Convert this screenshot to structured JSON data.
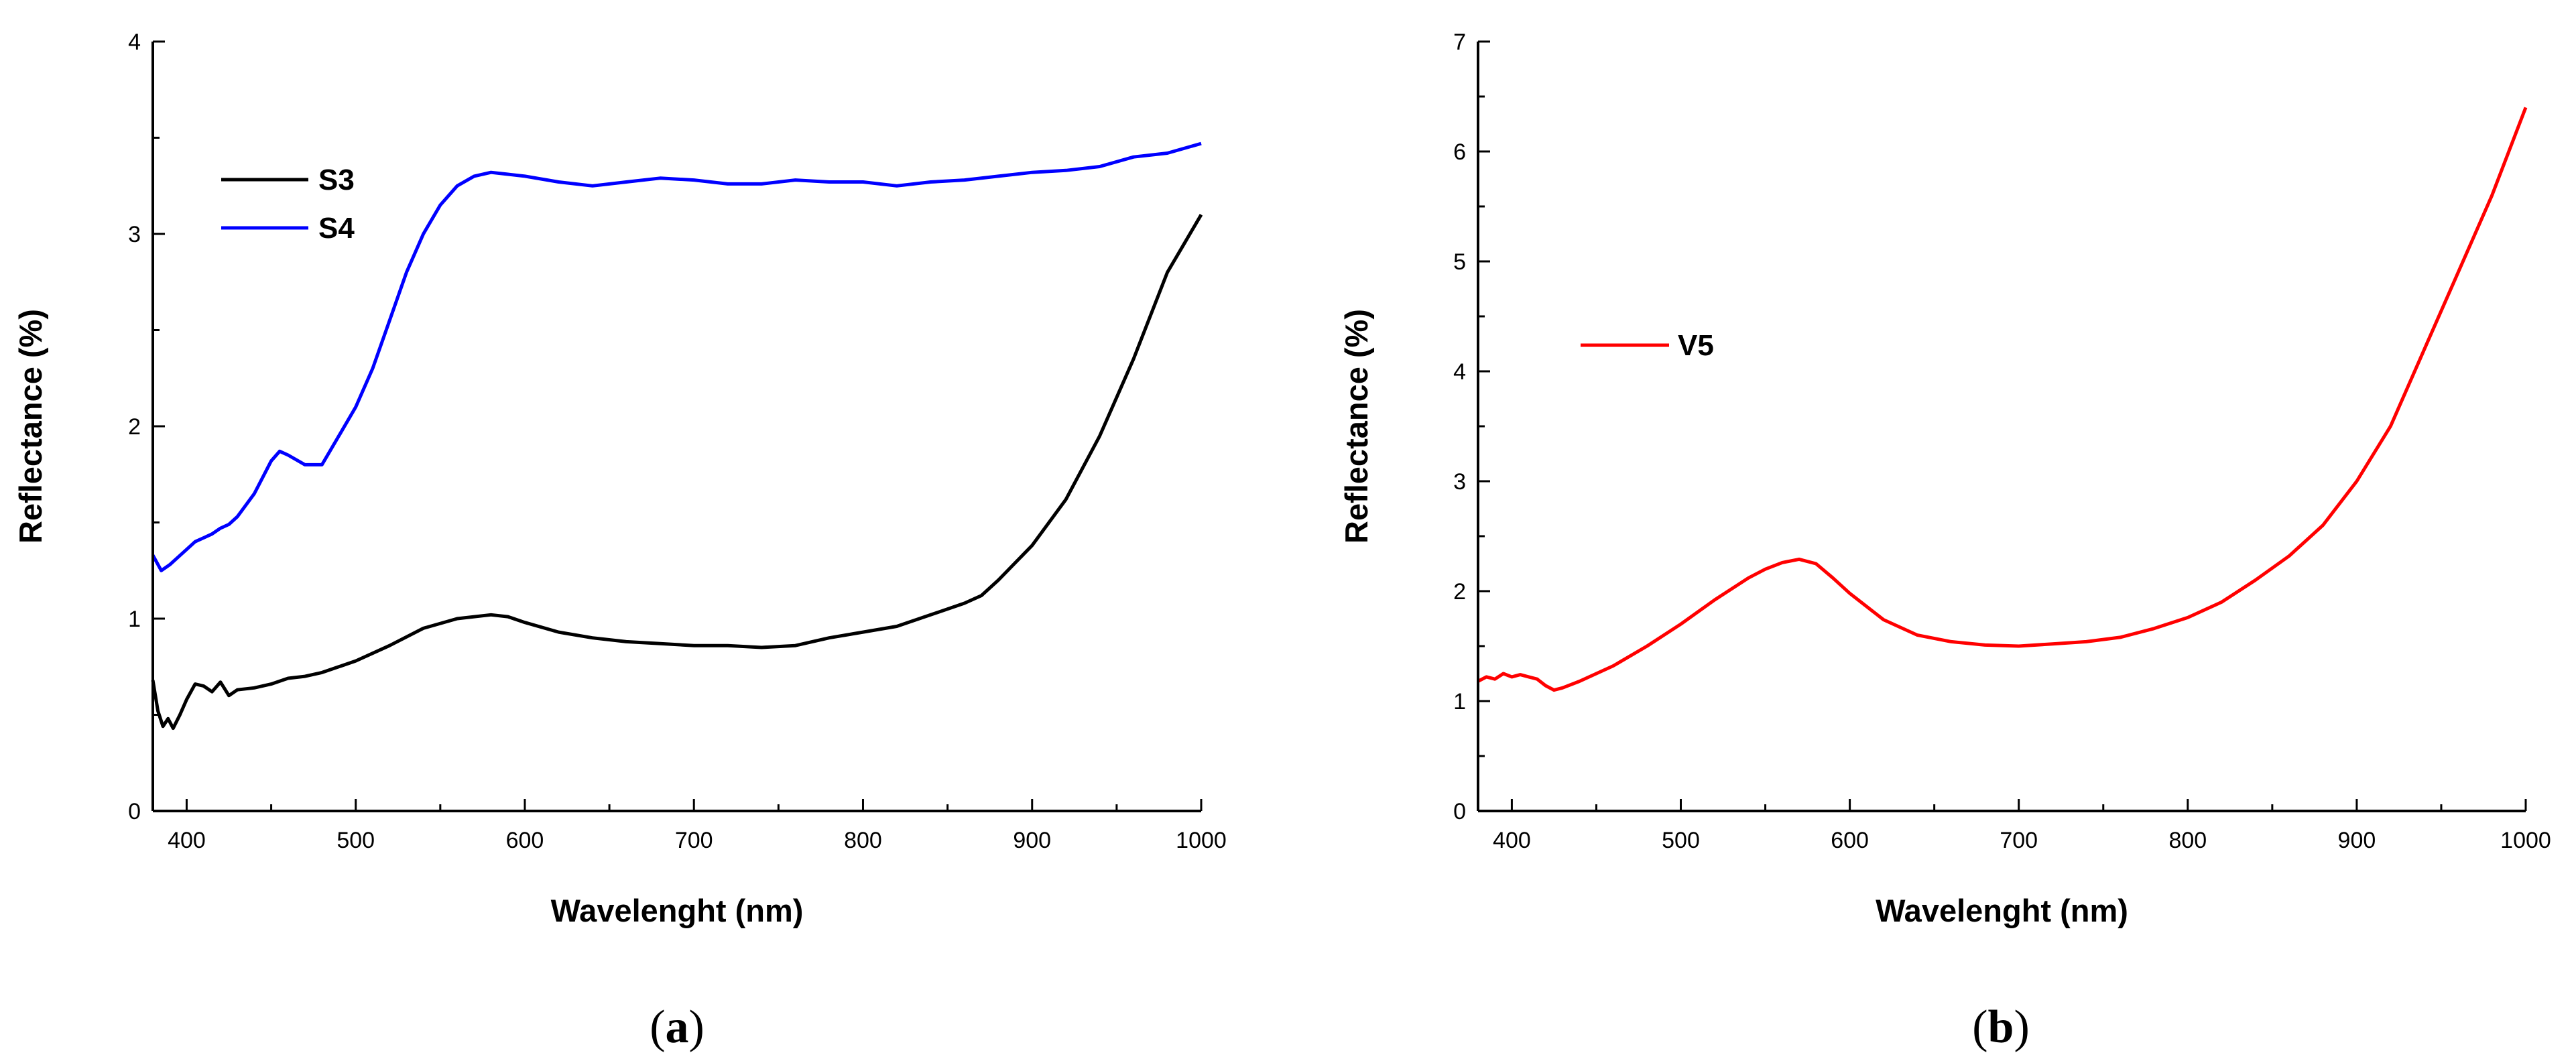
{
  "chart_data": [
    {
      "type": "line",
      "panel_label": {
        "open": "(",
        "letter": "a",
        "close": ")"
      },
      "xlabel": "Wavelenght (nm)",
      "ylabel": "Reflectance (%)",
      "xlim": [
        380,
        1000
      ],
      "ylim": [
        0,
        4
      ],
      "xticks": [
        400,
        500,
        600,
        700,
        800,
        900,
        1000
      ],
      "yticks": [
        0,
        1,
        2,
        3,
        4
      ],
      "legend_position": "top-left",
      "series": [
        {
          "name": "S3",
          "color": "#000000",
          "x": [
            380,
            383,
            386,
            389,
            392,
            396,
            400,
            405,
            410,
            415,
            420,
            425,
            430,
            440,
            450,
            460,
            470,
            480,
            490,
            500,
            520,
            540,
            560,
            580,
            590,
            600,
            620,
            640,
            660,
            680,
            700,
            720,
            740,
            760,
            780,
            800,
            820,
            840,
            860,
            870,
            880,
            900,
            920,
            940,
            960,
            980,
            990,
            1000
          ],
          "y": [
            0.68,
            0.52,
            0.44,
            0.48,
            0.43,
            0.5,
            0.58,
            0.66,
            0.65,
            0.62,
            0.67,
            0.6,
            0.63,
            0.64,
            0.66,
            0.69,
            0.7,
            0.72,
            0.75,
            0.78,
            0.86,
            0.95,
            1.0,
            1.02,
            1.01,
            0.98,
            0.93,
            0.9,
            0.88,
            0.87,
            0.86,
            0.86,
            0.85,
            0.86,
            0.9,
            0.93,
            0.96,
            1.02,
            1.08,
            1.12,
            1.2,
            1.38,
            1.62,
            1.95,
            2.35,
            2.8,
            2.95,
            3.1
          ]
        },
        {
          "name": "S4",
          "color": "#0000ff",
          "x": [
            380,
            385,
            390,
            395,
            400,
            405,
            410,
            415,
            420,
            425,
            430,
            440,
            450,
            455,
            460,
            470,
            480,
            490,
            500,
            510,
            520,
            530,
            540,
            550,
            560,
            570,
            580,
            590,
            600,
            620,
            640,
            660,
            680,
            700,
            720,
            740,
            760,
            780,
            800,
            820,
            840,
            860,
            880,
            900,
            920,
            940,
            960,
            980,
            1000
          ],
          "y": [
            1.33,
            1.25,
            1.28,
            1.32,
            1.36,
            1.4,
            1.42,
            1.44,
            1.47,
            1.49,
            1.53,
            1.65,
            1.82,
            1.87,
            1.85,
            1.8,
            1.8,
            1.95,
            2.1,
            2.3,
            2.55,
            2.8,
            3.0,
            3.15,
            3.25,
            3.3,
            3.32,
            3.31,
            3.3,
            3.27,
            3.25,
            3.27,
            3.29,
            3.28,
            3.26,
            3.26,
            3.28,
            3.27,
            3.27,
            3.25,
            3.27,
            3.28,
            3.3,
            3.32,
            3.33,
            3.35,
            3.4,
            3.42,
            3.47
          ]
        }
      ]
    },
    {
      "type": "line",
      "panel_label": {
        "open": "(",
        "letter": "b",
        "close": ")"
      },
      "xlabel": "Wavelenght (nm)",
      "ylabel": "Reflectance (%)",
      "xlim": [
        380,
        1000
      ],
      "ylim": [
        0,
        7
      ],
      "xticks": [
        400,
        500,
        600,
        700,
        800,
        900,
        1000
      ],
      "yticks": [
        0,
        1,
        2,
        3,
        4,
        5,
        6,
        7
      ],
      "legend_position": "upper-left",
      "series": [
        {
          "name": "V5",
          "color": "#ff0000",
          "x": [
            380,
            385,
            390,
            395,
            400,
            405,
            410,
            415,
            420,
            425,
            430,
            440,
            450,
            460,
            480,
            500,
            520,
            540,
            550,
            560,
            570,
            580,
            590,
            600,
            620,
            640,
            660,
            680,
            700,
            720,
            740,
            760,
            780,
            800,
            820,
            840,
            860,
            880,
            900,
            920,
            940,
            960,
            980,
            990,
            1000
          ],
          "y": [
            1.18,
            1.22,
            1.2,
            1.25,
            1.22,
            1.24,
            1.22,
            1.2,
            1.14,
            1.1,
            1.12,
            1.18,
            1.25,
            1.32,
            1.5,
            1.7,
            1.92,
            2.12,
            2.2,
            2.26,
            2.29,
            2.25,
            2.12,
            1.98,
            1.74,
            1.6,
            1.54,
            1.51,
            1.5,
            1.52,
            1.54,
            1.58,
            1.66,
            1.76,
            1.9,
            2.1,
            2.32,
            2.6,
            3.0,
            3.5,
            4.2,
            4.9,
            5.6,
            6.0,
            6.4
          ]
        }
      ]
    }
  ]
}
